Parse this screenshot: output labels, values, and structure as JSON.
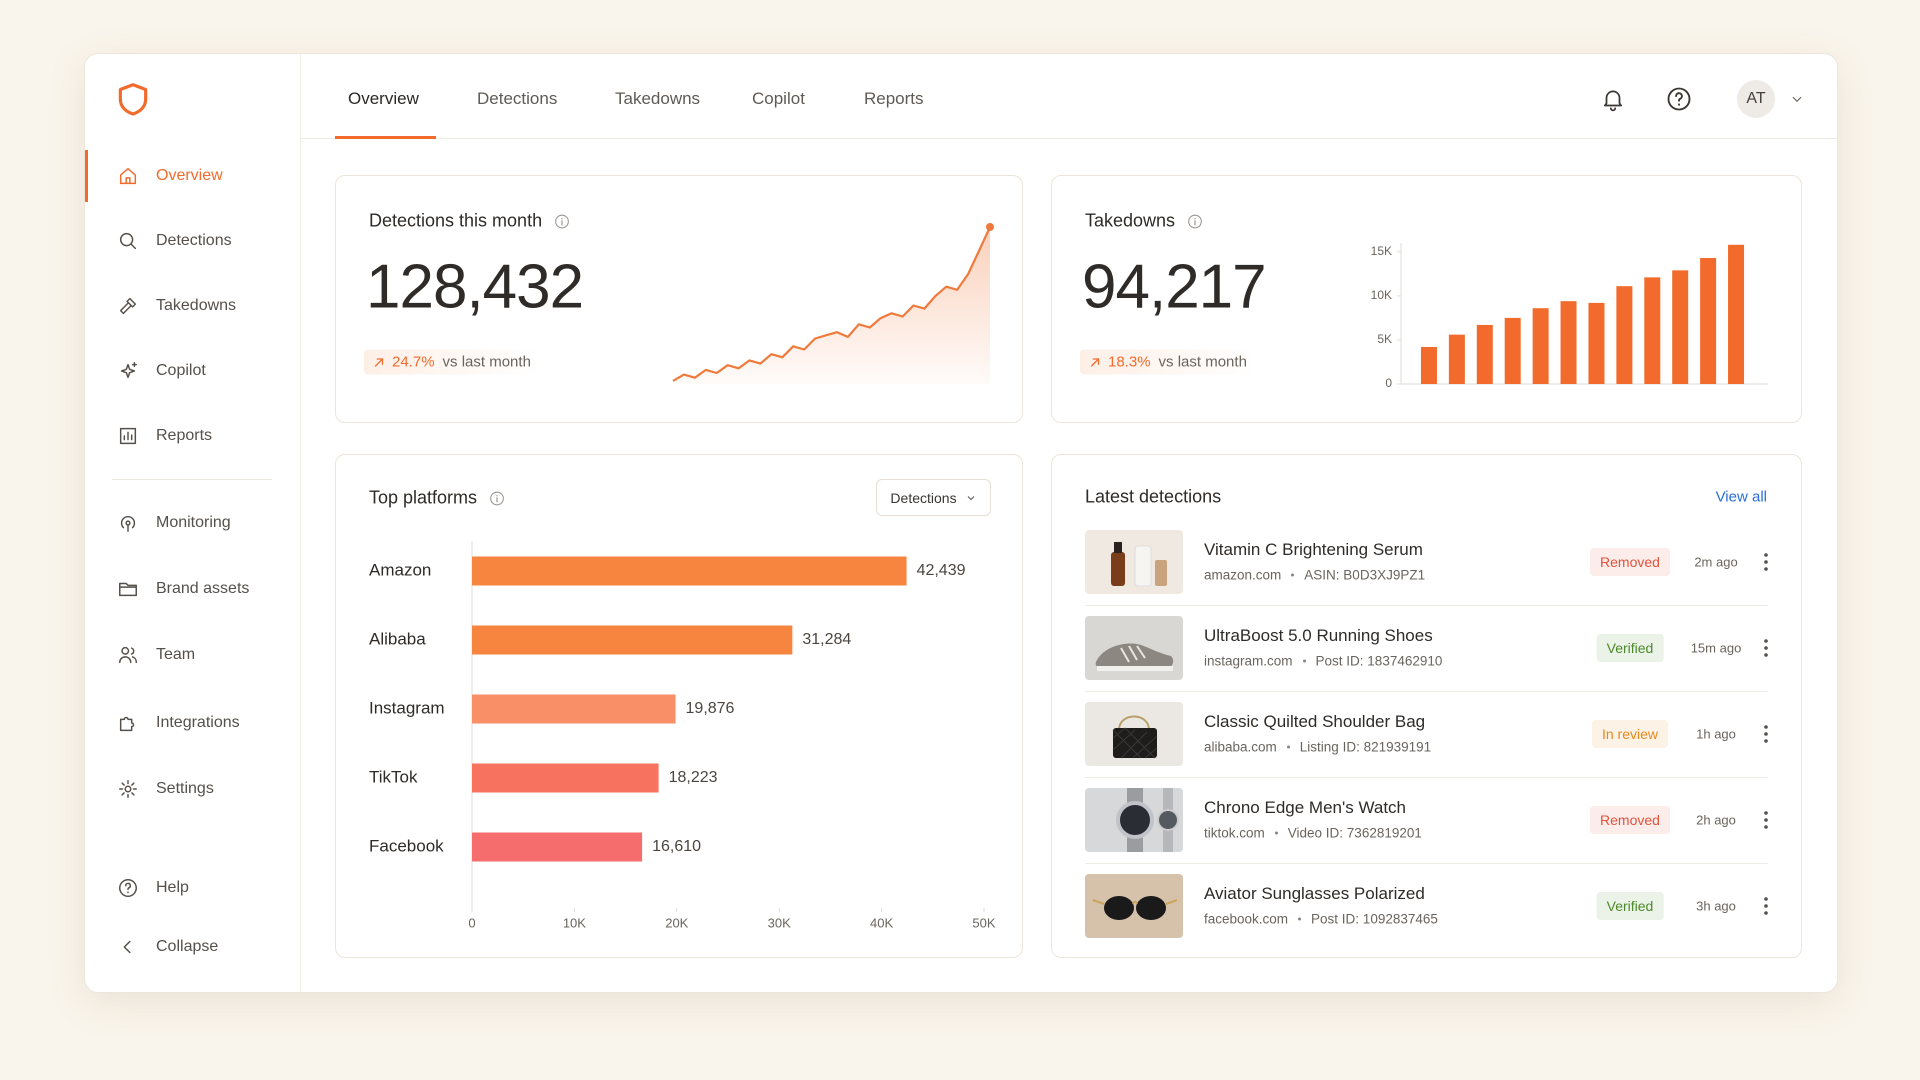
{
  "sidebar": {
    "primary": [
      "Overview",
      "Detections",
      "Takedowns",
      "Copilot",
      "Reports"
    ],
    "secondary": [
      "Monitoring",
      "Brand assets",
      "Team",
      "Integrations",
      "Settings"
    ],
    "footer": [
      "Help",
      "Collapse"
    ]
  },
  "tabs": [
    "Overview",
    "Detections",
    "Takedowns",
    "Copilot",
    "Reports"
  ],
  "user_initials": "AT",
  "kpis": [
    {
      "title": "Detections this month",
      "value": "128,432",
      "change": "24.7%",
      "comparison": "vs last month"
    },
    {
      "title": "Takedowns",
      "value": "94,217",
      "change": "18.3%",
      "comparison": "vs last month"
    }
  ],
  "chart_data": [
    {
      "type": "area",
      "color": "#f07a3c",
      "values": [
        2,
        6,
        4,
        9,
        7,
        12,
        10,
        15,
        13,
        19,
        17,
        24,
        22,
        29,
        31,
        33,
        30,
        38,
        36,
        42,
        45,
        43,
        50,
        48,
        56,
        62,
        60,
        70,
        85,
        100
      ]
    },
    {
      "type": "bar",
      "color": "#f26b2c",
      "categories": [
        null,
        null,
        null,
        null,
        null,
        null,
        null,
        null,
        null,
        null,
        null,
        null
      ],
      "values": [
        4200,
        5600,
        6700,
        7500,
        8600,
        9400,
        9200,
        11100,
        12100,
        12900,
        14300,
        15800
      ],
      "ylim": [
        0,
        16000
      ],
      "yticks": [
        0,
        {
          "value": 5000,
          "label": "5K"
        },
        {
          "value": 10000,
          "label": "10K"
        },
        {
          "value": 15000,
          "label": "15K"
        }
      ],
      "grid": false
    },
    {
      "type": "hbar",
      "title": "Top platforms",
      "filter": "Detections",
      "categories": [
        "Amazon",
        "Alibaba",
        "Instagram",
        "TikTok",
        "Facebook"
      ],
      "values": [
        42439,
        31284,
        19876,
        18223,
        16610
      ],
      "value_labels": [
        "42,439",
        "31,284",
        "19,876",
        "18,223",
        "16,610"
      ],
      "colors": [
        "#f7843f",
        "#f7843f",
        "#f98f66",
        "#f7735f",
        "#f56d6d"
      ],
      "xlim": [
        0,
        50000
      ],
      "xticks": [
        0,
        {
          "value": 10000,
          "label": "10K"
        },
        {
          "value": 20000,
          "label": "20K"
        },
        {
          "value": 30000,
          "label": "30K"
        },
        {
          "value": 40000,
          "label": "40K"
        },
        {
          "value": 50000,
          "label": "50K"
        }
      ]
    }
  ],
  "latest": {
    "title": "Latest detections",
    "view_all": "View all",
    "items": [
      {
        "name": "Vitamin C Brightening Serum",
        "site": "amazon.com",
        "id": "ASIN: B0D3XJ9PZ1",
        "status": "Removed",
        "status_color": "#e0533d",
        "time": "2m ago"
      },
      {
        "name": "UltraBoost 5.0 Running Shoes",
        "site": "instagram.com",
        "id": "Post ID: 1837462910",
        "status": "Verified",
        "status_color": "#4b8a2a",
        "time": "15m ago"
      },
      {
        "name": "Classic Quilted Shoulder Bag",
        "site": "alibaba.com",
        "id": "Listing ID: 821939191",
        "status": "In review",
        "status_color": "#e8891c",
        "time": "1h ago"
      },
      {
        "name": "Chrono Edge Men's Watch",
        "site": "tiktok.com",
        "id": "Video ID: 7362819201",
        "status": "Removed",
        "status_color": "#e0533d",
        "time": "2h ago"
      },
      {
        "name": "Aviator Sunglasses Polarized",
        "site": "facebook.com",
        "id": "Post ID: 1092837465",
        "status": "Verified",
        "status_color": "#4b8a2a",
        "time": "3h ago"
      }
    ]
  }
}
